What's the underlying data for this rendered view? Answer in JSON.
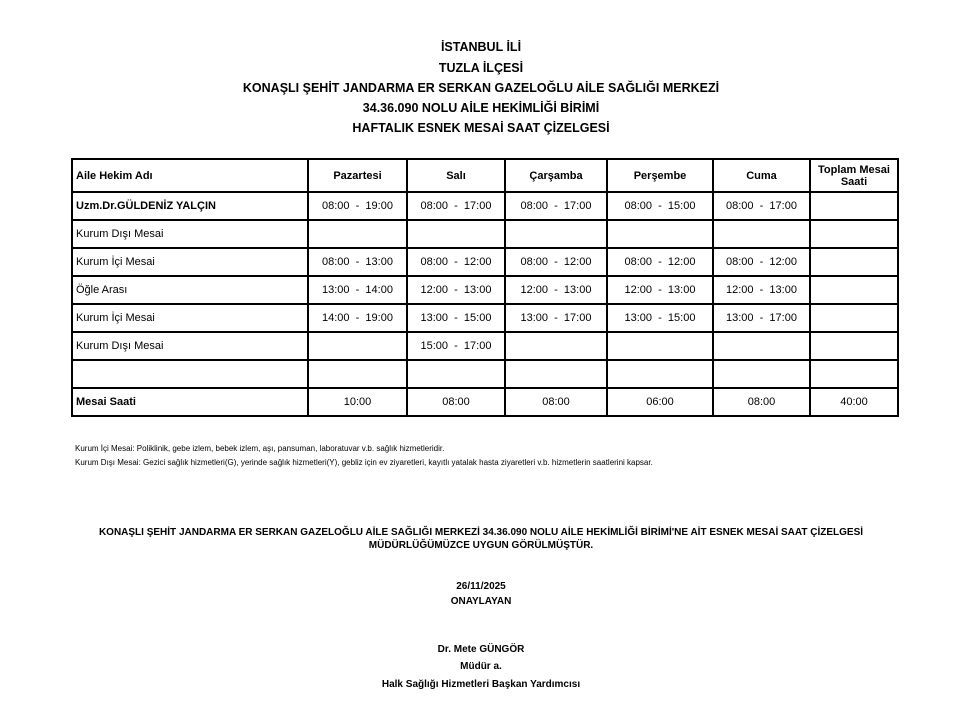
{
  "header": [
    "İSTANBUL İLİ",
    "TUZLA İLÇESİ",
    "KONAŞLI ŞEHİT JANDARMA ER SERKAN GAZELOĞLU AİLE SAĞLIĞI MERKEZİ",
    "34.36.090 NOLU AİLE HEKİMLİĞİ BİRİMİ",
    "HAFTALIK ESNEK MESAİ SAAT ÇİZELGESİ"
  ],
  "table": {
    "columns": [
      "Aile Hekim Adı",
      "Pazartesi",
      "Salı",
      "Çarşamba",
      "Perşembe",
      "Cuma",
      "Toplam Mesai Saati"
    ],
    "rows": [
      [
        "Uzm.Dr.GÜLDENİZ YALÇIN",
        "08:00  -  19:00",
        "08:00  -  17:00",
        "08:00  -  17:00",
        "08:00  -  15:00",
        "08:00  -  17:00",
        ""
      ],
      [
        "Kurum Dışı Mesai",
        "",
        "",
        "",
        "",
        "",
        ""
      ],
      [
        "Kurum İçi Mesai",
        "08:00  -  13:00",
        "08:00  -  12:00",
        "08:00  -  12:00",
        "08:00  -  12:00",
        "08:00  -  12:00",
        ""
      ],
      [
        "Öğle Arası",
        "13:00  -  14:00",
        "12:00  -  13:00",
        "12:00  -  13:00",
        "12:00  -  13:00",
        "12:00  -  13:00",
        ""
      ],
      [
        "Kurum İçi Mesai",
        "14:00  -  19:00",
        "13:00  -  15:00",
        "13:00  -  17:00",
        "13:00  -  15:00",
        "13:00  -  17:00",
        ""
      ],
      [
        "Kurum Dışı Mesai",
        "",
        "15:00  -  17:00",
        "",
        "",
        "",
        ""
      ],
      [
        "",
        "",
        "",
        "",
        "",
        "",
        ""
      ],
      [
        "Mesai Saati",
        "10:00",
        "08:00",
        "08:00",
        "06:00",
        "08:00",
        "40:00"
      ]
    ]
  },
  "notes": [
    "Kurum İçi Mesai: Poliklinik, gebe izlem, bebek izlem, aşı, pansuman, laboratuvar v.b. sağlık hizmetleridir.",
    "Kurum Dışı Mesai: Gezici sağlık hizmetleri(G), yerinde sağlık hizmetleri(Y), gebliz için ev ziyaretleri, kayıtlı yatalak hasta ziyaretleri v.b. hizmetlerin saatlerini kapsar."
  ],
  "approval": {
    "line1": "KONAŞLI ŞEHİT JANDARMA ER SERKAN GAZELOĞLU AİLE SAĞLIĞI MERKEZİ 34.36.090 NOLU AİLE HEKİMLİĞİ BİRİMİ'NE AİT ESNEK MESAİ SAAT ÇİZELGESİ",
    "line2": "MÜDÜRLÜĞÜMÜZCE UYGUN GÖRÜLMÜŞTÜR.",
    "date": "26/11/2025",
    "approver": "ONAYLAYAN",
    "name": "Dr. Mete GÜNGÖR",
    "title1": "Müdür a.",
    "title2": "Halk Sağlığı Hizmetleri Başkan Yardımcısı"
  }
}
